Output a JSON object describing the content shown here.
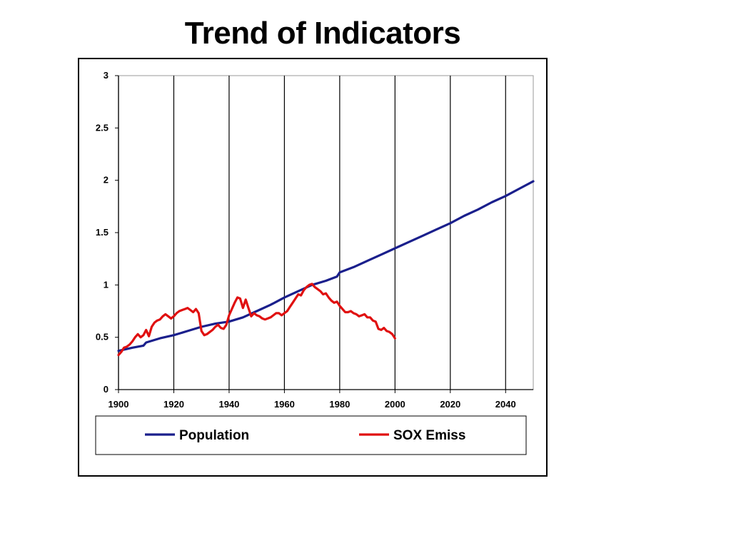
{
  "page": {
    "title": "Trend of Indicators"
  },
  "chart_data": {
    "type": "line",
    "title": "Trend of Indicators",
    "xlabel": "",
    "ylabel": "",
    "xlim": [
      1900,
      2050
    ],
    "ylim": [
      0,
      3
    ],
    "x_ticks": [
      1900,
      1920,
      1940,
      1960,
      1980,
      2000,
      2020,
      2040
    ],
    "y_ticks": [
      0,
      0.5,
      1,
      1.5,
      2,
      2.5,
      3
    ],
    "y_tick_labels": [
      "0",
      "0.5",
      "1",
      "1.5",
      "2",
      "2.5",
      "3"
    ],
    "grid": "vertical",
    "legend": "bottom",
    "series": [
      {
        "name": "Population",
        "color": "#1a1f8c",
        "points": [
          [
            1900,
            0.37
          ],
          [
            1905,
            0.4
          ],
          [
            1909,
            0.42
          ],
          [
            1910,
            0.45
          ],
          [
            1915,
            0.49
          ],
          [
            1920,
            0.52
          ],
          [
            1925,
            0.56
          ],
          [
            1930,
            0.6
          ],
          [
            1935,
            0.63
          ],
          [
            1940,
            0.65
          ],
          [
            1945,
            0.69
          ],
          [
            1950,
            0.75
          ],
          [
            1955,
            0.81
          ],
          [
            1960,
            0.88
          ],
          [
            1965,
            0.94
          ],
          [
            1970,
            1.0
          ],
          [
            1975,
            1.04
          ],
          [
            1979,
            1.08
          ],
          [
            1980,
            1.12
          ],
          [
            1985,
            1.17
          ],
          [
            1990,
            1.23
          ],
          [
            1995,
            1.29
          ],
          [
            2000,
            1.35
          ],
          [
            2005,
            1.41
          ],
          [
            2010,
            1.47
          ],
          [
            2015,
            1.53
          ],
          [
            2020,
            1.59
          ],
          [
            2025,
            1.66
          ],
          [
            2030,
            1.72
          ],
          [
            2035,
            1.79
          ],
          [
            2040,
            1.85
          ],
          [
            2045,
            1.92
          ],
          [
            2050,
            1.99
          ]
        ]
      },
      {
        "name": "SOX Emiss",
        "color": "#e01010",
        "points": [
          [
            1900,
            0.33
          ],
          [
            1901,
            0.36
          ],
          [
            1902,
            0.4
          ],
          [
            1903,
            0.41
          ],
          [
            1904,
            0.43
          ],
          [
            1905,
            0.46
          ],
          [
            1906,
            0.5
          ],
          [
            1907,
            0.53
          ],
          [
            1908,
            0.5
          ],
          [
            1909,
            0.52
          ],
          [
            1910,
            0.57
          ],
          [
            1911,
            0.51
          ],
          [
            1912,
            0.6
          ],
          [
            1913,
            0.64
          ],
          [
            1914,
            0.66
          ],
          [
            1915,
            0.67
          ],
          [
            1916,
            0.7
          ],
          [
            1917,
            0.72
          ],
          [
            1918,
            0.7
          ],
          [
            1919,
            0.68
          ],
          [
            1920,
            0.7
          ],
          [
            1921,
            0.73
          ],
          [
            1922,
            0.75
          ],
          [
            1923,
            0.76
          ],
          [
            1924,
            0.77
          ],
          [
            1925,
            0.78
          ],
          [
            1926,
            0.76
          ],
          [
            1927,
            0.74
          ],
          [
            1928,
            0.77
          ],
          [
            1929,
            0.73
          ],
          [
            1930,
            0.56
          ],
          [
            1931,
            0.52
          ],
          [
            1932,
            0.53
          ],
          [
            1933,
            0.55
          ],
          [
            1934,
            0.57
          ],
          [
            1935,
            0.6
          ],
          [
            1936,
            0.62
          ],
          [
            1937,
            0.59
          ],
          [
            1938,
            0.58
          ],
          [
            1939,
            0.62
          ],
          [
            1940,
            0.71
          ],
          [
            1941,
            0.77
          ],
          [
            1942,
            0.83
          ],
          [
            1943,
            0.88
          ],
          [
            1944,
            0.87
          ],
          [
            1945,
            0.78
          ],
          [
            1946,
            0.86
          ],
          [
            1947,
            0.78
          ],
          [
            1948,
            0.7
          ],
          [
            1949,
            0.73
          ],
          [
            1950,
            0.71
          ],
          [
            1951,
            0.7
          ],
          [
            1952,
            0.68
          ],
          [
            1953,
            0.67
          ],
          [
            1954,
            0.68
          ],
          [
            1955,
            0.69
          ],
          [
            1956,
            0.71
          ],
          [
            1957,
            0.73
          ],
          [
            1958,
            0.73
          ],
          [
            1959,
            0.71
          ],
          [
            1960,
            0.73
          ],
          [
            1961,
            0.75
          ],
          [
            1962,
            0.79
          ],
          [
            1963,
            0.83
          ],
          [
            1964,
            0.87
          ],
          [
            1965,
            0.91
          ],
          [
            1966,
            0.9
          ],
          [
            1967,
            0.95
          ],
          [
            1968,
            0.98
          ],
          [
            1969,
            1.0
          ],
          [
            1970,
            1.01
          ],
          [
            1971,
            0.98
          ],
          [
            1972,
            0.96
          ],
          [
            1973,
            0.94
          ],
          [
            1974,
            0.91
          ],
          [
            1975,
            0.92
          ],
          [
            1976,
            0.88
          ],
          [
            1977,
            0.85
          ],
          [
            1978,
            0.83
          ],
          [
            1979,
            0.84
          ],
          [
            1980,
            0.8
          ],
          [
            1981,
            0.77
          ],
          [
            1982,
            0.74
          ],
          [
            1983,
            0.74
          ],
          [
            1984,
            0.75
          ],
          [
            1985,
            0.73
          ],
          [
            1986,
            0.72
          ],
          [
            1987,
            0.7
          ],
          [
            1988,
            0.71
          ],
          [
            1989,
            0.72
          ],
          [
            1990,
            0.69
          ],
          [
            1991,
            0.69
          ],
          [
            1992,
            0.66
          ],
          [
            1993,
            0.65
          ],
          [
            1994,
            0.58
          ],
          [
            1995,
            0.57
          ],
          [
            1996,
            0.59
          ],
          [
            1997,
            0.56
          ],
          [
            1998,
            0.55
          ],
          [
            1999,
            0.53
          ],
          [
            2000,
            0.49
          ]
        ]
      }
    ]
  }
}
